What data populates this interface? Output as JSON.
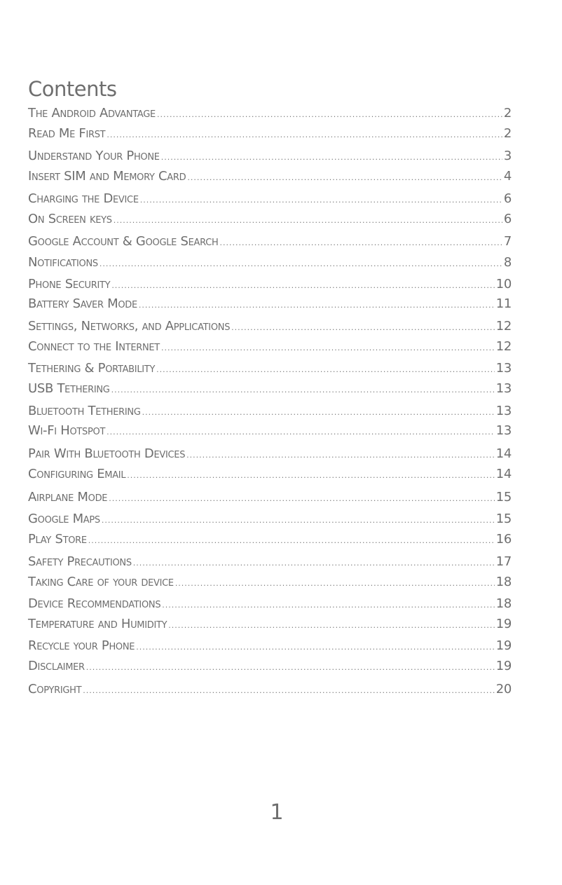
{
  "title": "Contents",
  "entries": [
    {
      "label": "The Android Advantage",
      "page": "2"
    },
    {
      "label": "Read Me First",
      "page": "2"
    },
    {
      "label": "Understand Your Phone",
      "page": "3"
    },
    {
      "label": "Insert SIM and Memory Card",
      "page": "4"
    },
    {
      "label": "Charging the Device",
      "page": "6"
    },
    {
      "label": "On Screen keys",
      "page": "6"
    },
    {
      "label": "Google Account & Google Search",
      "page": "7"
    },
    {
      "label": "Notifications",
      "page": "8"
    },
    {
      "label": "Phone Security",
      "page": "10"
    },
    {
      "label": "Battery Saver Mode",
      "page": "11"
    },
    {
      "label": "Settings, Networks, and Applications",
      "page": "12"
    },
    {
      "label": "Connect to the Internet",
      "page": "12"
    },
    {
      "label": "Tethering & Portability",
      "page": "13"
    },
    {
      "label": "USB Tethering",
      "page": "13"
    },
    {
      "label": "Bluetooth Tethering",
      "page": "13"
    },
    {
      "label": "Wi-Fi Hotspot",
      "page": "13"
    },
    {
      "label": "Pair With Bluetooth Devices",
      "page": "14"
    },
    {
      "label": "Configuring Email",
      "page": "14"
    },
    {
      "label": "Airplane Mode",
      "page": "15"
    },
    {
      "label": "Google Maps",
      "page": "15"
    },
    {
      "label": "Play Store",
      "page": "16"
    },
    {
      "label": "Safety Precautions",
      "page": "17"
    },
    {
      "label": "Taking Care of your device",
      "page": "18"
    },
    {
      "label": "Device Recommendations",
      "page": "18"
    },
    {
      "label": "Temperature and Humidity",
      "page": "19"
    },
    {
      "label": "Recycle your Phone",
      "page": "19"
    },
    {
      "label": "Disclaimer",
      "page": "19"
    },
    {
      "label": "Copyright",
      "page": "20"
    }
  ],
  "page_number": "1",
  "colors": {
    "text": "#6e6e6e"
  }
}
